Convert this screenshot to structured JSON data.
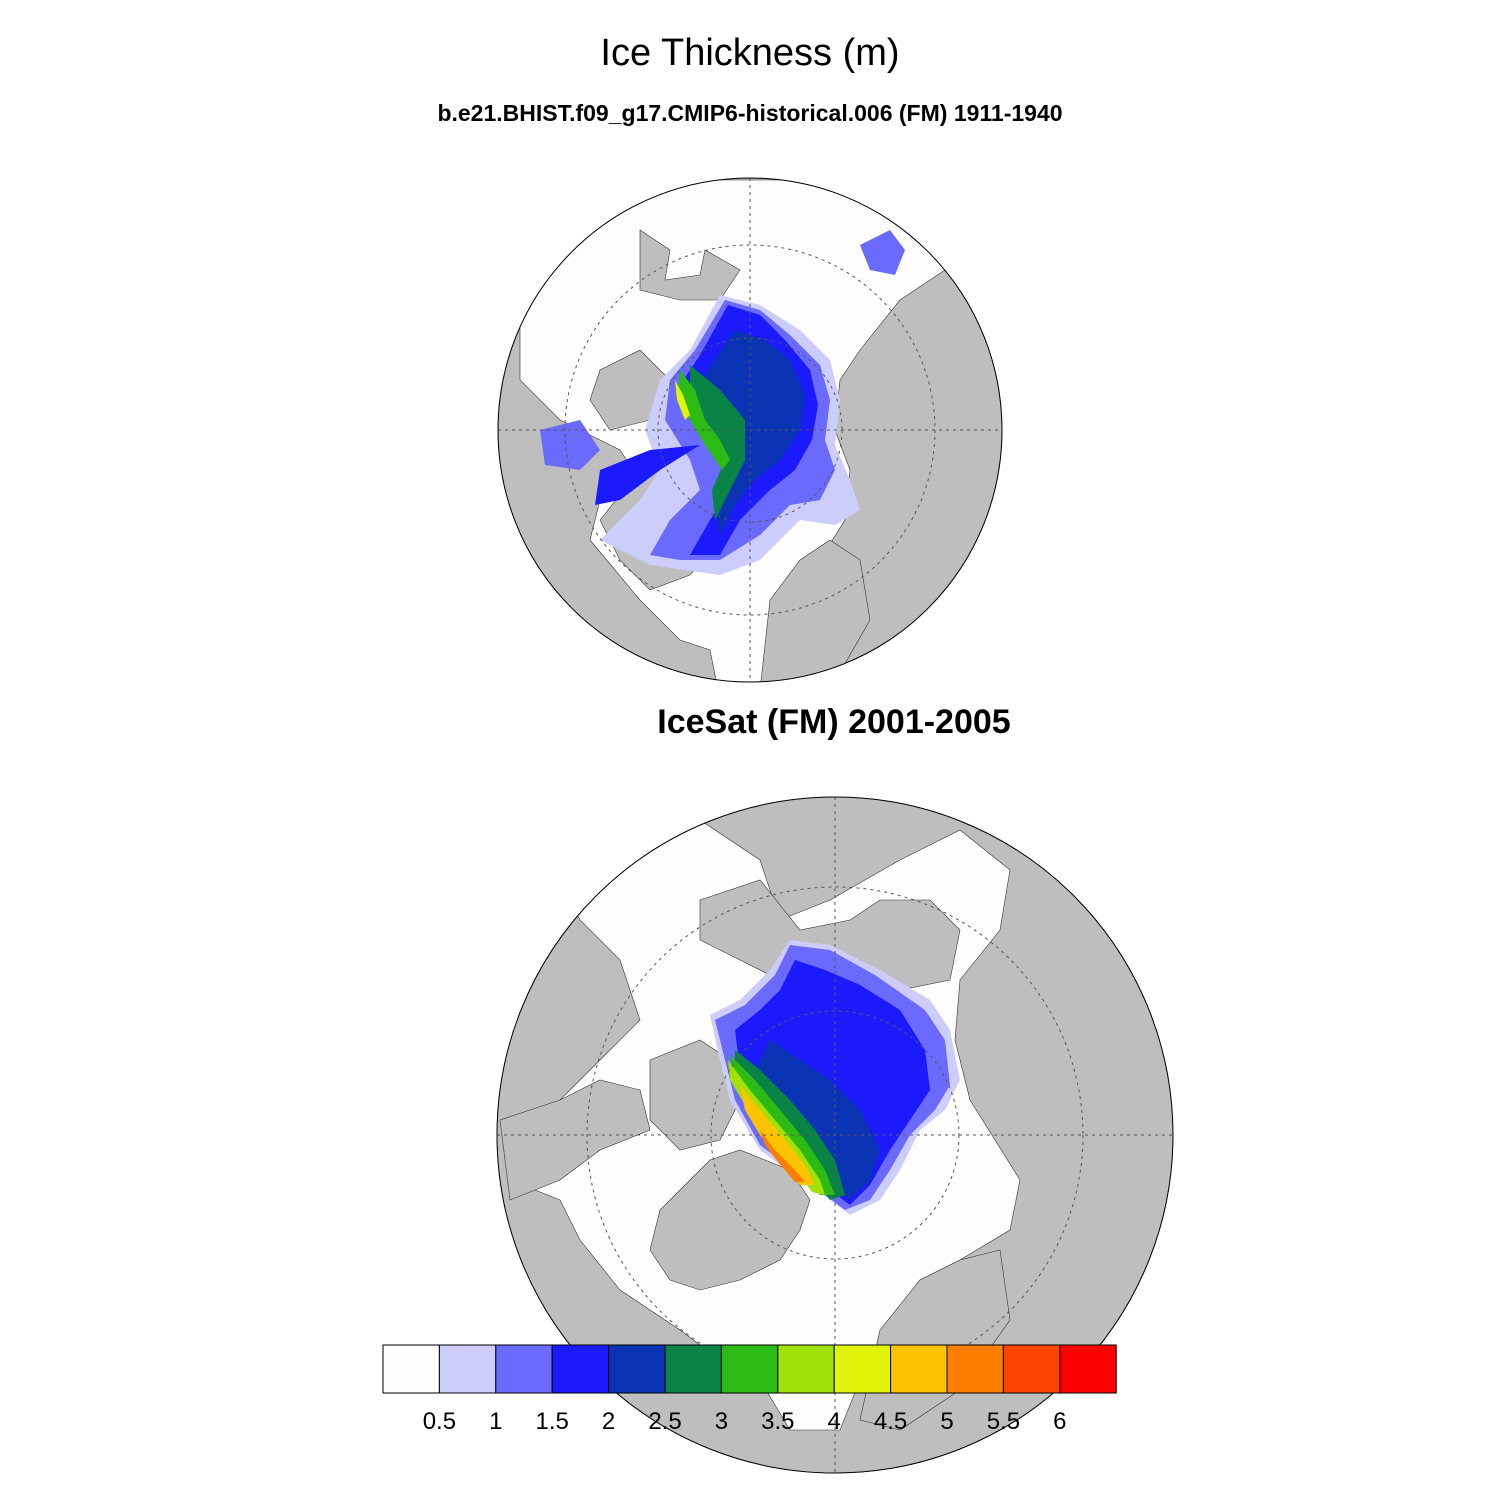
{
  "title": "Ice Thickness (m)",
  "panels": [
    {
      "title": "b.e21.BHIST.f09_g17.CMIP6-historical.006 (FM) 1911-1940"
    },
    {
      "title": "IceSat (FM) 2001-2005"
    }
  ],
  "colors": {
    "land": "#bebebe",
    "ocean": "#fdfdfc",
    "graticule": "#555555"
  },
  "colorbar": {
    "labels": [
      "0.5",
      "1",
      "1.5",
      "2",
      "2.5",
      "3",
      "3.5",
      "4",
      "4.5",
      "5",
      "5.5",
      "6"
    ],
    "colors": [
      "#fdfdfc",
      "#cdcdfc",
      "#6a6afc",
      "#1a1afc",
      "#0a34b4",
      "#0a8446",
      "#2cba14",
      "#a2e00a",
      "#e0f40a",
      "#fcc400",
      "#fc7e00",
      "#fc4400",
      "#fc0000"
    ]
  }
}
